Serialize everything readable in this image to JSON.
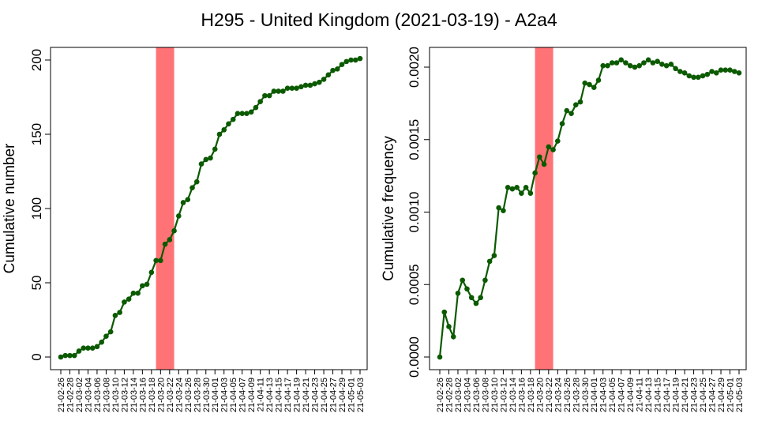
{
  "figure": {
    "title": "H295 - United Kingdom (2021-03-19) - A2a4"
  },
  "colors": {
    "line": "#0b5a00",
    "highlight": "#ff7276",
    "axis": "#000000"
  },
  "chart_data": [
    {
      "type": "line",
      "ylabel": "Cumulative number",
      "xlabel": "",
      "ylim": [
        0,
        200
      ],
      "yticks": [
        0,
        50,
        100,
        150,
        200
      ],
      "ytick_labels": [
        "0",
        "50",
        "100",
        "150",
        "200"
      ],
      "grid": false,
      "highlight_span": [
        "2021-03-19",
        "2021-03-23"
      ],
      "x": [
        "2021-02-26",
        "2021-02-27",
        "2021-02-28",
        "2021-03-01",
        "2021-03-02",
        "2021-03-03",
        "2021-03-04",
        "2021-03-05",
        "2021-03-06",
        "2021-03-07",
        "2021-03-08",
        "2021-03-09",
        "2021-03-10",
        "2021-03-11",
        "2021-03-12",
        "2021-03-13",
        "2021-03-14",
        "2021-03-15",
        "2021-03-16",
        "2021-03-17",
        "2021-03-18",
        "2021-03-19",
        "2021-03-20",
        "2021-03-21",
        "2021-03-22",
        "2021-03-23",
        "2021-03-24",
        "2021-03-25",
        "2021-03-26",
        "2021-03-27",
        "2021-03-28",
        "2021-03-29",
        "2021-03-30",
        "2021-03-31",
        "2021-04-01",
        "2021-04-02",
        "2021-04-03",
        "2021-04-04",
        "2021-04-05",
        "2021-04-06",
        "2021-04-07",
        "2021-04-08",
        "2021-04-09",
        "2021-04-10",
        "2021-04-11",
        "2021-04-12",
        "2021-04-13",
        "2021-04-14",
        "2021-04-15",
        "2021-04-16",
        "2021-04-17",
        "2021-04-18",
        "2021-04-19",
        "2021-04-20",
        "2021-04-21",
        "2021-04-22",
        "2021-04-23",
        "2021-04-24",
        "2021-04-25",
        "2021-04-26",
        "2021-04-27",
        "2021-04-28",
        "2021-04-29",
        "2021-04-30",
        "2021-05-01",
        "2021-05-02",
        "2021-05-03"
      ],
      "series": [
        {
          "values": [
            0,
            1,
            1,
            1,
            4,
            6,
            6,
            6,
            7,
            10,
            14,
            17,
            28,
            30,
            37,
            39,
            43,
            43,
            48,
            49,
            57,
            65,
            65,
            76,
            79,
            85,
            95,
            104,
            106,
            114,
            118,
            130,
            133,
            134,
            140,
            150,
            153,
            157,
            160,
            164,
            164,
            164,
            165,
            168,
            172,
            176,
            176,
            179,
            179,
            179,
            181,
            181,
            181,
            182,
            183,
            183,
            184,
            185,
            187,
            190,
            193,
            194,
            197,
            199,
            200,
            200,
            201
          ]
        }
      ],
      "xtick_labels": [
        "21-02-26",
        "21-02-28",
        "21-03-02",
        "21-03-04",
        "21-03-06",
        "21-03-08",
        "21-03-10",
        "21-03-12",
        "21-03-14",
        "21-03-16",
        "21-03-18",
        "21-03-20",
        "21-03-22",
        "21-03-24",
        "21-03-26",
        "21-03-28",
        "21-03-30",
        "21-04-01",
        "21-04-03",
        "21-04-05",
        "21-04-07",
        "21-04-09",
        "21-04-11",
        "21-04-13",
        "21-04-15",
        "21-04-17",
        "21-04-19",
        "21-04-21",
        "21-04-23",
        "21-04-25",
        "21-04-27",
        "21-04-29",
        "21-05-01",
        "21-05-03"
      ]
    },
    {
      "type": "line",
      "ylabel": "Cumulative frequency",
      "xlabel": "",
      "ylim": [
        0,
        0.002
      ],
      "yticks": [
        0,
        0.0005,
        0.001,
        0.0015,
        0.002
      ],
      "ytick_labels": [
        "0.0000",
        "0.0005",
        "0.0010",
        "0.0015",
        "0.0020"
      ],
      "grid": false,
      "highlight_span": [
        "2021-03-19",
        "2021-03-23"
      ],
      "x": [
        "2021-02-26",
        "2021-02-27",
        "2021-02-28",
        "2021-03-01",
        "2021-03-02",
        "2021-03-03",
        "2021-03-04",
        "2021-03-05",
        "2021-03-06",
        "2021-03-07",
        "2021-03-08",
        "2021-03-09",
        "2021-03-10",
        "2021-03-11",
        "2021-03-12",
        "2021-03-13",
        "2021-03-14",
        "2021-03-15",
        "2021-03-16",
        "2021-03-17",
        "2021-03-18",
        "2021-03-19",
        "2021-03-20",
        "2021-03-21",
        "2021-03-22",
        "2021-03-23",
        "2021-03-24",
        "2021-03-25",
        "2021-03-26",
        "2021-03-27",
        "2021-03-28",
        "2021-03-29",
        "2021-03-30",
        "2021-03-31",
        "2021-04-01",
        "2021-04-02",
        "2021-04-03",
        "2021-04-04",
        "2021-04-05",
        "2021-04-06",
        "2021-04-07",
        "2021-04-08",
        "2021-04-09",
        "2021-04-10",
        "2021-04-11",
        "2021-04-12",
        "2021-04-13",
        "2021-04-14",
        "2021-04-15",
        "2021-04-16",
        "2021-04-17",
        "2021-04-18",
        "2021-04-19",
        "2021-04-20",
        "2021-04-21",
        "2021-04-22",
        "2021-04-23",
        "2021-04-24",
        "2021-04-25",
        "2021-04-26",
        "2021-04-27",
        "2021-04-28",
        "2021-04-29",
        "2021-04-30",
        "2021-05-01",
        "2021-05-02",
        "2021-05-03"
      ],
      "series": [
        {
          "values": [
            0,
            0.00031,
            0.00021,
            0.00014,
            0.00044,
            0.00053,
            0.00047,
            0.00041,
            0.00037,
            0.00041,
            0.00053,
            0.00066,
            0.0007,
            0.00103,
            0.00101,
            0.00117,
            0.00116,
            0.00117,
            0.00113,
            0.00117,
            0.00113,
            0.00127,
            0.00138,
            0.00133,
            0.00145,
            0.00143,
            0.00149,
            0.00161,
            0.0017,
            0.00168,
            0.00174,
            0.00176,
            0.00189,
            0.00188,
            0.00186,
            0.00191,
            0.00201,
            0.00201,
            0.00203,
            0.00203,
            0.00205,
            0.00203,
            0.00201,
            0.002,
            0.00201,
            0.00203,
            0.00205,
            0.00203,
            0.00204,
            0.00202,
            0.00201,
            0.00202,
            0.00199,
            0.00197,
            0.00196,
            0.00194,
            0.00193,
            0.00193,
            0.00194,
            0.00195,
            0.00197,
            0.00196,
            0.00198,
            0.00198,
            0.00198,
            0.00197,
            0.00196
          ]
        }
      ],
      "xtick_labels": [
        "21-02-26",
        "21-02-28",
        "21-03-02",
        "21-03-04",
        "21-03-06",
        "21-03-08",
        "21-03-10",
        "21-03-12",
        "21-03-14",
        "21-03-16",
        "21-03-18",
        "21-03-20",
        "21-03-22",
        "21-03-24",
        "21-03-26",
        "21-03-28",
        "21-03-30",
        "21-04-01",
        "21-04-03",
        "21-04-05",
        "21-04-07",
        "21-04-09",
        "21-04-11",
        "21-04-13",
        "21-04-15",
        "21-04-17",
        "21-04-19",
        "21-04-21",
        "21-04-23",
        "21-04-25",
        "21-04-27",
        "21-04-29",
        "21-05-01",
        "21-05-03"
      ]
    }
  ]
}
